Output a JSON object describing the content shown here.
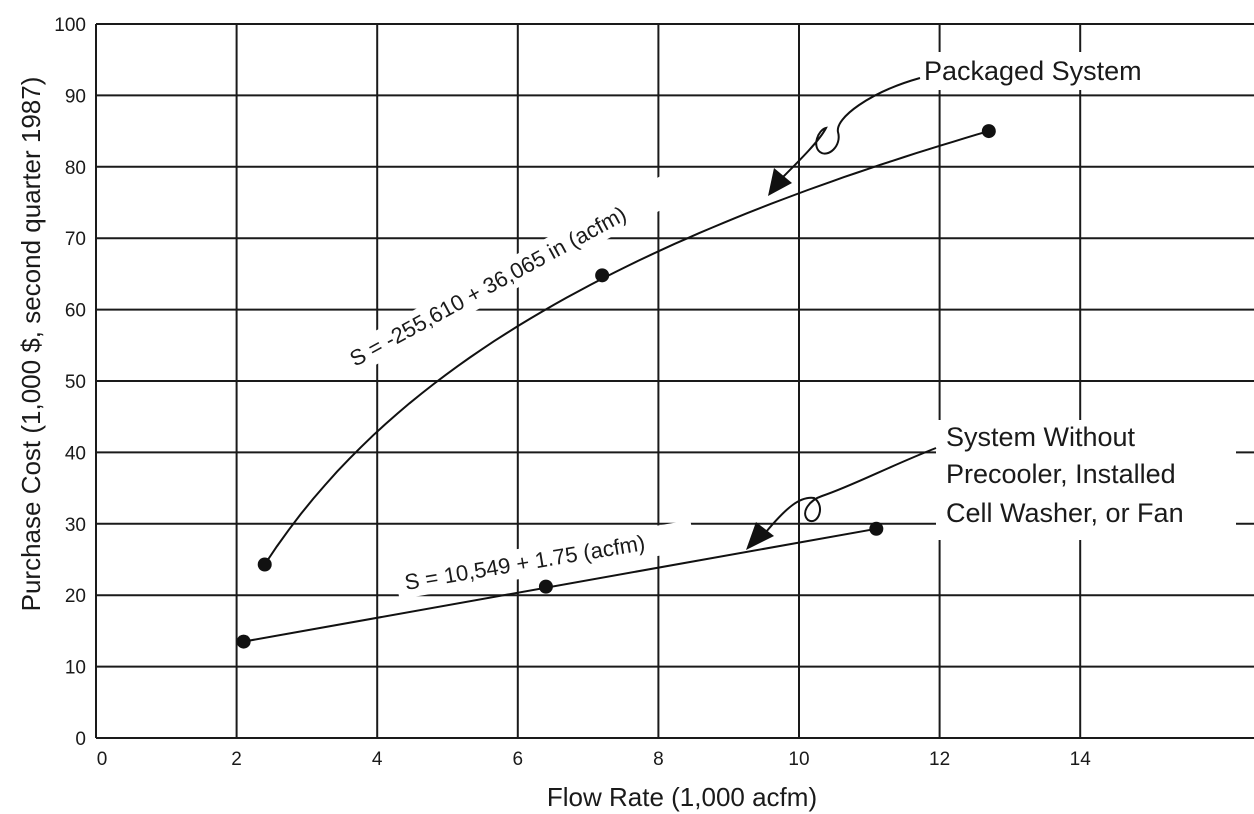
{
  "chart_data": {
    "type": "line",
    "xlabel": "Flow Rate (1,000 acfm)",
    "ylabel": "Purchase Cost (1,000 $, second quarter 1987)",
    "xlim": [
      0,
      16
    ],
    "ylim": [
      0,
      100
    ],
    "x_ticks": [
      "0",
      "2",
      "4",
      "6",
      "8",
      "10",
      "12",
      "14"
    ],
    "y_ticks": [
      "0",
      "10",
      "20",
      "30",
      "40",
      "50",
      "60",
      "70",
      "80",
      "90",
      "100"
    ],
    "grid": true,
    "series": [
      {
        "name": "Packaged System",
        "equation": "S = -255,610 + 36,065 in (acfm)",
        "curve": "log",
        "x_range": [
          2.4,
          12.7
        ],
        "points": [
          {
            "x": 2.4,
            "y": 24.3
          },
          {
            "x": 7.2,
            "y": 64.8
          },
          {
            "x": 12.7,
            "y": 85.0
          }
        ]
      },
      {
        "name": "System Without Precooler, Installed Cell Washer, or Fan",
        "name_lines": [
          "System Without",
          "Precooler, Installed",
          "Cell Washer, or Fan"
        ],
        "equation": "S = 10,549 + 1.75 (acfm)",
        "curve": "linear",
        "x_range": [
          2.1,
          11.1
        ],
        "points": [
          {
            "x": 2.1,
            "y": 13.5
          },
          {
            "x": 6.4,
            "y": 21.2
          },
          {
            "x": 11.1,
            "y": 29.3
          }
        ]
      }
    ]
  }
}
